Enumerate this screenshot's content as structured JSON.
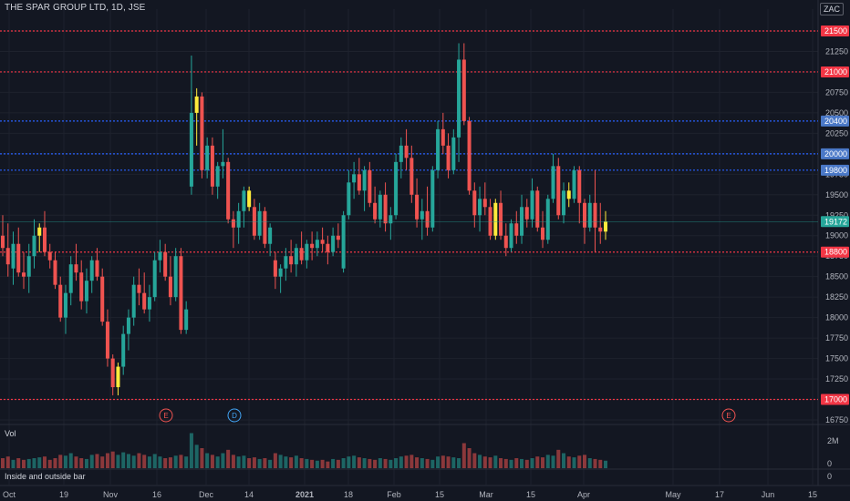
{
  "header": {
    "title": "THE SPAR GROUP LTD, 1D, JSE",
    "currency_badge": "ZAC"
  },
  "colors": {
    "background": "#131722",
    "grid": "#1e222d",
    "up": "#26a69a",
    "down": "#ef5350",
    "inside_outside_bar": "#ffeb3b",
    "support_resistance_line": "#f23645",
    "blue_line": "#2962ff",
    "last_price_tag": "#26a69a"
  },
  "panels": {
    "volume_label": "Vol",
    "indicator_label": "Inside and outside bar",
    "volume_axis_ticks": [
      "2M",
      "0"
    ],
    "indicator_axis_tick": "0"
  },
  "events": [
    {
      "label": "E",
      "date": "2020-11-16",
      "kind": "earnings"
    },
    {
      "label": "D",
      "date": "2020-12-07",
      "kind": "dividend"
    },
    {
      "label": "E",
      "date": "2021-05-21",
      "kind": "earnings"
    }
  ],
  "chart_data": {
    "type": "candlestick",
    "ylim": [
      16750,
      21500
    ],
    "y_ticks": [
      16750,
      17000,
      17250,
      17500,
      17750,
      18000,
      18250,
      18500,
      18750,
      19000,
      19250,
      19500,
      19750,
      20000,
      20250,
      20500,
      20750,
      21000,
      21250,
      21500
    ],
    "x_tick_labels": [
      "Oct",
      "19",
      "Nov",
      "16",
      "Dec",
      "14",
      "2021",
      "18",
      "Feb",
      "15",
      "Mar",
      "15",
      "Apr",
      "May",
      "17",
      "Jun",
      "15"
    ],
    "horizontal_lines": [
      {
        "value": 21500,
        "color": "red"
      },
      {
        "value": 21000,
        "color": "red"
      },
      {
        "value": 20400,
        "color": "blue"
      },
      {
        "value": 20000,
        "color": "blue"
      },
      {
        "value": 19800,
        "color": "blue"
      },
      {
        "value": 18800,
        "color": "red"
      },
      {
        "value": 17000,
        "color": "red"
      }
    ],
    "last_price": 19172,
    "grid": true,
    "candles": [
      [
        19000,
        19250,
        18750,
        18850
      ],
      [
        18850,
        19150,
        18500,
        18650
      ],
      [
        18600,
        19050,
        18400,
        18900
      ],
      [
        18900,
        19100,
        18500,
        18550
      ],
      [
        18550,
        18800,
        18350,
        18500
      ],
      [
        18500,
        18900,
        18300,
        18750
      ],
      [
        18750,
        19200,
        18600,
        19000
      ],
      [
        19000,
        19150,
        18800,
        19100
      ],
      [
        19100,
        19300,
        18750,
        18800
      ],
      [
        18800,
        18900,
        18600,
        18700
      ],
      [
        18700,
        18800,
        18350,
        18400
      ],
      [
        18400,
        18500,
        17950,
        18000
      ],
      [
        18000,
        18400,
        17800,
        18300
      ],
      [
        18300,
        18750,
        18150,
        18650
      ],
      [
        18650,
        18900,
        18450,
        18550
      ],
      [
        18550,
        18700,
        18100,
        18200
      ],
      [
        18200,
        18600,
        18050,
        18450
      ],
      [
        18450,
        18750,
        18300,
        18700
      ],
      [
        18700,
        18850,
        18450,
        18500
      ],
      [
        18500,
        18600,
        17900,
        17950
      ],
      [
        17950,
        18100,
        17400,
        17500
      ],
      [
        17500,
        17550,
        17050,
        17150
      ],
      [
        17150,
        17450,
        17050,
        17400
      ],
      [
        17400,
        17900,
        17300,
        17800
      ],
      [
        17800,
        18100,
        17600,
        18000
      ],
      [
        18000,
        18500,
        17900,
        18400
      ],
      [
        18400,
        18600,
        18150,
        18300
      ],
      [
        18300,
        18550,
        18050,
        18100
      ],
      [
        18100,
        18400,
        17950,
        18250
      ],
      [
        18250,
        18800,
        18200,
        18700
      ],
      [
        18700,
        18950,
        18550,
        18800
      ],
      [
        18800,
        18900,
        18450,
        18500
      ],
      [
        18500,
        18750,
        18150,
        18250
      ],
      [
        18250,
        18850,
        18200,
        18750
      ],
      [
        18750,
        18850,
        17800,
        17850
      ],
      [
        17850,
        18200,
        17800,
        18100
      ],
      [
        19600,
        21200,
        19500,
        20500
      ],
      [
        20500,
        20800,
        20100,
        20700
      ],
      [
        20700,
        20750,
        19700,
        19800
      ],
      [
        19800,
        20200,
        19700,
        20100
      ],
      [
        20100,
        20200,
        19500,
        19600
      ],
      [
        19600,
        19900,
        19450,
        19850
      ],
      [
        19850,
        20300,
        19700,
        19900
      ],
      [
        19900,
        19950,
        19150,
        19200
      ],
      [
        19200,
        19300,
        18850,
        19100
      ],
      [
        19100,
        19400,
        18900,
        19300
      ],
      [
        19300,
        19600,
        19100,
        19550
      ],
      [
        19550,
        19600,
        19300,
        19350
      ],
      [
        19350,
        19450,
        18950,
        19000
      ],
      [
        19000,
        19400,
        18950,
        19300
      ],
      [
        19300,
        19350,
        18850,
        18900
      ],
      [
        18900,
        19150,
        18750,
        19100
      ],
      [
        18700,
        18800,
        18350,
        18500
      ],
      [
        18500,
        18650,
        18300,
        18600
      ],
      [
        18600,
        18850,
        18450,
        18750
      ],
      [
        18750,
        18950,
        18550,
        18650
      ],
      [
        18650,
        18900,
        18500,
        18850
      ],
      [
        18850,
        19050,
        18650,
        18700
      ],
      [
        18700,
        18950,
        18600,
        18900
      ],
      [
        18900,
        19050,
        18700,
        18850
      ],
      [
        18850,
        19050,
        18750,
        18950
      ],
      [
        18950,
        19100,
        18800,
        18900
      ],
      [
        18900,
        19000,
        18650,
        18800
      ],
      [
        18800,
        19100,
        18750,
        19000
      ],
      [
        19000,
        19150,
        18850,
        18950
      ],
      [
        18600,
        19300,
        18550,
        19250
      ],
      [
        19250,
        19800,
        19200,
        19650
      ],
      [
        19650,
        19900,
        19450,
        19750
      ],
      [
        19750,
        19950,
        19500,
        19550
      ],
      [
        19550,
        19850,
        19300,
        19800
      ],
      [
        19800,
        19900,
        19350,
        19400
      ],
      [
        19400,
        19600,
        19150,
        19200
      ],
      [
        19200,
        19550,
        19100,
        19500
      ],
      [
        19500,
        19650,
        19050,
        19150
      ],
      [
        19150,
        19350,
        18950,
        19250
      ],
      [
        19250,
        20000,
        19200,
        19900
      ],
      [
        19900,
        20200,
        19700,
        20100
      ],
      [
        20100,
        20300,
        19800,
        19950
      ],
      [
        19950,
        20100,
        19400,
        19500
      ],
      [
        19500,
        19700,
        19100,
        19200
      ],
      [
        19200,
        19450,
        18950,
        19300
      ],
      [
        19300,
        19600,
        19000,
        19100
      ],
      [
        19100,
        19850,
        19050,
        19800
      ],
      [
        19800,
        20400,
        19700,
        20300
      ],
      [
        20300,
        20500,
        20000,
        20100
      ],
      [
        20100,
        20250,
        19700,
        19800
      ],
      [
        19800,
        20300,
        19750,
        20200
      ],
      [
        20200,
        21350,
        19900,
        21150
      ],
      [
        21150,
        21350,
        20350,
        20400
      ],
      [
        20400,
        20450,
        19500,
        19550
      ],
      [
        19550,
        19650,
        19100,
        19250
      ],
      [
        19250,
        19600,
        19050,
        19450
      ],
      [
        19450,
        19650,
        19250,
        19350
      ],
      [
        19350,
        19450,
        18950,
        19000
      ],
      [
        19000,
        19450,
        18950,
        19400
      ],
      [
        19400,
        19550,
        18950,
        19000
      ],
      [
        19000,
        19150,
        18750,
        18850
      ],
      [
        18850,
        19200,
        18800,
        19150
      ],
      [
        19150,
        19300,
        18900,
        19000
      ],
      [
        19000,
        19500,
        18900,
        19350
      ],
      [
        19350,
        19450,
        19100,
        19200
      ],
      [
        19200,
        19700,
        19100,
        19550
      ],
      [
        19550,
        19600,
        19050,
        19100
      ],
      [
        19100,
        19300,
        18850,
        18950
      ],
      [
        18950,
        19500,
        18900,
        19450
      ],
      [
        19450,
        20000,
        19400,
        19850
      ],
      [
        19850,
        19950,
        19200,
        19250
      ],
      [
        19250,
        19650,
        19150,
        19550
      ],
      [
        19550,
        19650,
        19350,
        19450
      ],
      [
        19450,
        19850,
        19400,
        19800
      ],
      [
        19800,
        19850,
        19150,
        19400
      ],
      [
        19400,
        19450,
        18900,
        19100
      ],
      [
        19100,
        19500,
        19050,
        19400
      ],
      [
        19400,
        19800,
        18800,
        19100
      ],
      [
        19100,
        19400,
        18900,
        19050
      ],
      [
        19050,
        19300,
        18950,
        19172
      ]
    ],
    "volume": [
      0.6,
      0.7,
      0.5,
      0.6,
      0.5,
      0.55,
      0.6,
      0.65,
      0.7,
      0.5,
      0.6,
      0.8,
      0.75,
      0.9,
      0.7,
      0.6,
      0.55,
      0.8,
      0.85,
      0.7,
      0.9,
      1.0,
      0.8,
      0.95,
      0.85,
      0.75,
      0.9,
      0.8,
      0.7,
      0.85,
      0.7,
      0.6,
      0.65,
      0.75,
      0.8,
      0.7,
      2.1,
      1.4,
      1.2,
      0.9,
      0.8,
      0.7,
      0.9,
      1.1,
      0.8,
      0.7,
      0.75,
      0.6,
      0.65,
      0.55,
      0.6,
      0.5,
      0.9,
      0.8,
      0.7,
      0.65,
      0.75,
      0.6,
      0.55,
      0.5,
      0.45,
      0.5,
      0.4,
      0.55,
      0.5,
      0.6,
      0.7,
      0.75,
      0.65,
      0.6,
      0.55,
      0.5,
      0.6,
      0.55,
      0.5,
      0.6,
      0.7,
      0.75,
      0.8,
      0.65,
      0.6,
      0.55,
      0.5,
      0.7,
      0.75,
      0.7,
      0.65,
      0.6,
      1.5,
      1.2,
      0.9,
      0.8,
      0.7,
      0.65,
      0.75,
      0.6,
      0.55,
      0.5,
      0.6,
      0.55,
      0.5,
      0.6,
      0.7,
      0.65,
      0.8,
      0.75,
      1.1,
      0.9,
      0.7,
      0.65,
      0.75,
      0.8,
      0.6,
      0.55,
      0.5,
      0.45
    ],
    "volume_unit": "millions"
  }
}
